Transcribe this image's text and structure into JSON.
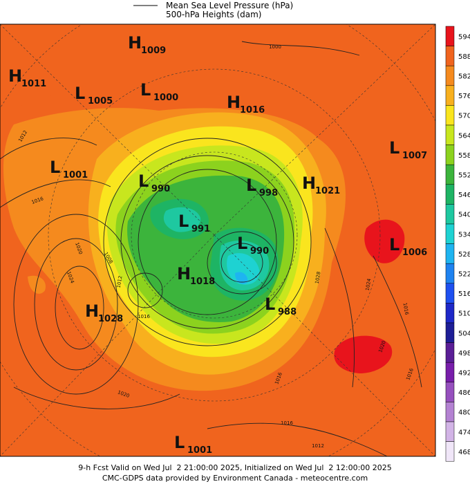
{
  "header": {
    "legend": [
      "Mean Sea Level Pressure (hPa)",
      "500-hPa Heights (dam)"
    ]
  },
  "centers": [
    {
      "kind": "H",
      "value": "1009"
    },
    {
      "kind": "H",
      "value": "1011"
    },
    {
      "kind": "L",
      "value": "1005"
    },
    {
      "kind": "L",
      "value": "1000"
    },
    {
      "kind": "H",
      "value": "1016"
    },
    {
      "kind": "L",
      "value": "1007"
    },
    {
      "kind": "L",
      "value": "1001"
    },
    {
      "kind": "L",
      "value": "990"
    },
    {
      "kind": "L",
      "value": "998"
    },
    {
      "kind": "H",
      "value": "1021"
    },
    {
      "kind": "L",
      "value": "991"
    },
    {
      "kind": "L",
      "value": "990"
    },
    {
      "kind": "L",
      "value": "1006"
    },
    {
      "kind": "H",
      "value": "1018"
    },
    {
      "kind": "H",
      "value": "1028"
    },
    {
      "kind": "L",
      "value": "988"
    },
    {
      "kind": "L",
      "value": "1001"
    }
  ],
  "isobar_labels": [
    "1000",
    "1012",
    "1016",
    "1020",
    "1024",
    "1012",
    "1016",
    "1008",
    "1028",
    "1024",
    "1016",
    "1020",
    "1016",
    "1016",
    "1020",
    "1016",
    "1012"
  ],
  "colorbar": {
    "levels": [
      "594",
      "588",
      "582",
      "576",
      "570",
      "564",
      "558",
      "552",
      "546",
      "540",
      "534",
      "528",
      "522",
      "516",
      "510",
      "504",
      "498",
      "492",
      "486",
      "480",
      "474",
      "468"
    ],
    "colors": [
      "#e8141c",
      "#f0641e",
      "#f58a1e",
      "#f8b01e",
      "#fae51e",
      "#c8e61e",
      "#8cd21e",
      "#3cb43c",
      "#1eb464",
      "#1ec8a0",
      "#1ed2d2",
      "#1eb4f0",
      "#1e82f0",
      "#1e50f0",
      "#1e28c8",
      "#1e1e96",
      "#5a1e96",
      "#781eaa",
      "#9650be",
      "#b482d2",
      "#d2b4e6",
      "#f0e6f8"
    ]
  },
  "footer": {
    "line1": "9-h Fcst Valid on Wed Jul  2 21:00:00 2025, Initialized on Wed Jul  2 12:00:00 2025",
    "line2": "CMC-GDPS data provided by Environment Canada - meteocentre.com"
  }
}
